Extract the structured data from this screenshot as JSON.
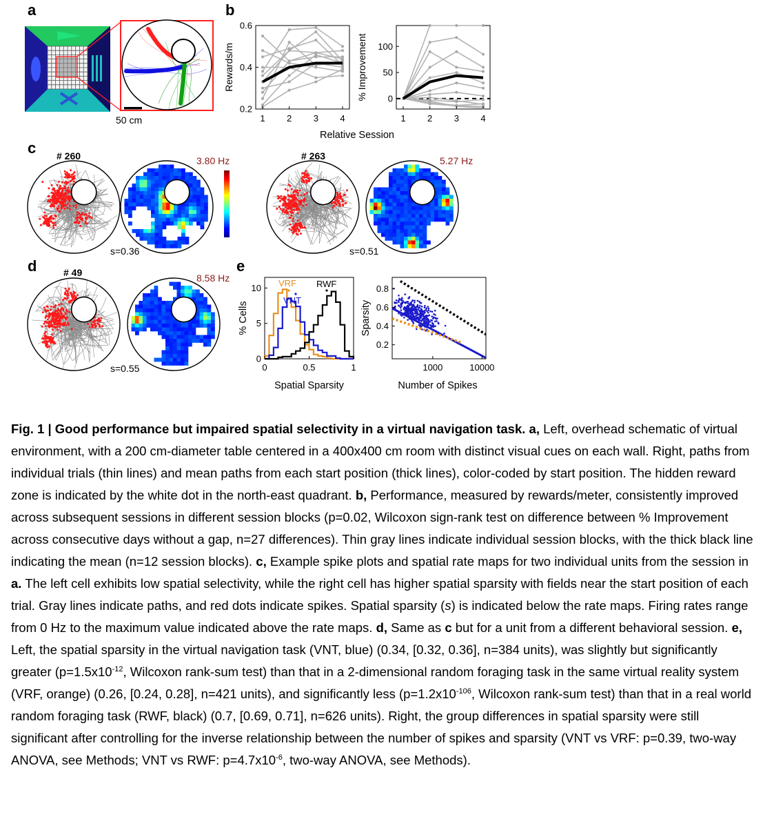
{
  "panels": {
    "a": {
      "label": "a",
      "scale_bar": "50 cm",
      "colors": {
        "path_red": "#ff2020",
        "path_blue": "#1010e0",
        "path_green": "#10a010"
      }
    },
    "b": {
      "label": "b",
      "xlabel": "Relative Session",
      "left": {
        "ylabel": "Rewards/m",
        "xticks": [
          "1",
          "2",
          "3",
          "4"
        ],
        "yticks": [
          "0.2",
          "0.4",
          "0.6"
        ]
      },
      "right": {
        "ylabel": "% Improvement",
        "xticks": [
          "1",
          "2",
          "3",
          "4"
        ],
        "yticks": [
          "0",
          "50",
          "100"
        ]
      }
    },
    "c": {
      "label": "c",
      "unit1": {
        "id": "# 260",
        "max_rate": "3.80 Hz",
        "sparsity": "s=0.36"
      },
      "unit2": {
        "id": "# 263",
        "max_rate": "5.27 Hz",
        "sparsity": "s=0.51"
      }
    },
    "d": {
      "label": "d",
      "unit": {
        "id": "# 49",
        "max_rate": "8.58 Hz",
        "sparsity": "s=0.55"
      }
    },
    "e": {
      "label": "e",
      "left": {
        "ylabel": "% Cells",
        "xlabel": "Spatial Sparsity",
        "xticks": [
          "0",
          "0.5",
          "1"
        ],
        "yticks": [
          "0",
          "5",
          "10"
        ],
        "legend": {
          "vrf": "VRF",
          "vnt": "VNT",
          "rwf": "RWF"
        }
      },
      "right": {
        "ylabel": "Sparsity",
        "xlabel": "Number of Spikes",
        "xticks": [
          "1000",
          "10000"
        ],
        "yticks": [
          "0.2",
          "0.4",
          "0.6",
          "0.8"
        ]
      },
      "colors": {
        "vrf": "#e8901c",
        "vnt": "#1a1acc",
        "rwf": "#000000"
      }
    }
  },
  "chart_data": [
    {
      "type": "line",
      "panel": "b-left",
      "x": [
        1,
        2,
        3,
        4
      ],
      "ylabel": "Rewards/m",
      "xlabel": "Relative Session",
      "ylim": [
        0.2,
        0.6
      ],
      "series": [
        {
          "name": "",
          "role": "mean",
          "values": [
            0.33,
            0.4,
            0.42,
            0.42
          ]
        },
        {
          "name": "",
          "role": "individual",
          "values": [
            0.21,
            0.29,
            0.33,
            0.39
          ]
        },
        {
          "name": "",
          "role": "individual",
          "values": [
            0.22,
            0.36,
            0.46,
            0.42
          ]
        },
        {
          "name": "",
          "role": "individual",
          "values": [
            0.25,
            0.52,
            0.41,
            0.43
          ]
        },
        {
          "name": "",
          "role": "individual",
          "values": [
            0.28,
            0.43,
            0.47,
            0.44
          ]
        },
        {
          "name": "",
          "role": "individual",
          "values": [
            0.3,
            0.33,
            0.42,
            0.4
          ]
        },
        {
          "name": "",
          "role": "individual",
          "values": [
            0.33,
            0.48,
            0.47,
            0.48
          ]
        },
        {
          "name": "",
          "role": "individual",
          "values": [
            0.36,
            0.48,
            0.57,
            0.43
          ]
        },
        {
          "name": "",
          "role": "individual",
          "values": [
            0.38,
            0.58,
            0.59,
            0.5
          ]
        },
        {
          "name": "",
          "role": "individual",
          "values": [
            0.4,
            0.4,
            0.35,
            0.36
          ]
        },
        {
          "name": "",
          "role": "individual",
          "values": [
            0.45,
            0.49,
            0.53,
            0.41
          ]
        },
        {
          "name": "",
          "role": "individual",
          "values": [
            0.48,
            0.42,
            0.4,
            0.38
          ]
        },
        {
          "name": "",
          "role": "individual",
          "values": [
            0.55,
            0.43,
            0.45,
            0.45
          ]
        }
      ]
    },
    {
      "type": "line",
      "panel": "b-right",
      "x": [
        1,
        2,
        3,
        4
      ],
      "ylabel": "% Improvement",
      "xlabel": "Relative Session",
      "ylim": [
        -20,
        140
      ],
      "reference_line": 0,
      "series": [
        {
          "name": "",
          "role": "mean",
          "values": [
            0,
            32,
            44,
            40
          ]
        },
        {
          "name": "",
          "role": "individual",
          "values": [
            0,
            140,
            140,
            140
          ]
        },
        {
          "name": "",
          "role": "individual",
          "values": [
            0,
            108,
            117,
            85
          ]
        },
        {
          "name": "",
          "role": "individual",
          "values": [
            0,
            90,
            60,
            52
          ]
        },
        {
          "name": "",
          "role": "individual",
          "values": [
            0,
            60,
            90,
            60
          ]
        },
        {
          "name": "",
          "role": "individual",
          "values": [
            0,
            40,
            50,
            30
          ]
        },
        {
          "name": "",
          "role": "individual",
          "values": [
            0,
            15,
            30,
            20
          ]
        },
        {
          "name": "",
          "role": "individual",
          "values": [
            0,
            8,
            12,
            5
          ]
        },
        {
          "name": "",
          "role": "individual",
          "values": [
            0,
            -3,
            -6,
            -2
          ]
        },
        {
          "name": "",
          "role": "individual",
          "values": [
            0,
            -8,
            -13,
            -10
          ]
        },
        {
          "name": "",
          "role": "individual",
          "values": [
            0,
            -10,
            -14,
            -15
          ]
        },
        {
          "name": "",
          "role": "individual",
          "values": [
            0,
            -5,
            -15,
            -18
          ]
        },
        {
          "name": "",
          "role": "individual",
          "values": [
            0,
            2,
            -4,
            -11
          ]
        }
      ]
    },
    {
      "type": "line",
      "panel": "e-left",
      "step": true,
      "xlabel": "Spatial Sparsity",
      "ylabel": "% Cells",
      "xlim": [
        0,
        1
      ],
      "ylim": [
        0,
        11.5
      ],
      "bin_width": 0.05,
      "series": [
        {
          "name": "VRF",
          "x": [
            0,
            0.05,
            0.1,
            0.15,
            0.2,
            0.25,
            0.3,
            0.35,
            0.4,
            0.45,
            0.5,
            0.55,
            0.6,
            0.65,
            0.7,
            0.75,
            0.8,
            0.85,
            0.9,
            0.95
          ],
          "values": [
            0.4,
            3.3,
            6.4,
            9.3,
            9.8,
            8.6,
            7.3,
            5.4,
            3.5,
            2.0,
            1.3,
            0.6,
            0.4,
            0.3,
            0.1,
            0,
            0,
            0,
            0,
            0
          ]
        },
        {
          "name": "VNT",
          "x": [
            0,
            0.05,
            0.1,
            0.15,
            0.2,
            0.25,
            0.3,
            0.35,
            0.4,
            0.45,
            0.5,
            0.55,
            0.6,
            0.65,
            0.7,
            0.75,
            0.8,
            0.85,
            0.9,
            0.95
          ],
          "values": [
            0,
            0.5,
            1.6,
            4.3,
            7.3,
            8.5,
            8.1,
            7.4,
            5.2,
            3.4,
            2.7,
            1.9,
            1.2,
            0.9,
            0.4,
            0.4,
            0.1,
            0,
            0,
            0
          ]
        },
        {
          "name": "RWF",
          "x": [
            0,
            0.05,
            0.1,
            0.15,
            0.2,
            0.25,
            0.3,
            0.35,
            0.4,
            0.45,
            0.5,
            0.55,
            0.6,
            0.65,
            0.7,
            0.75,
            0.8,
            0.85,
            0.9,
            0.95
          ],
          "values": [
            0,
            0,
            0,
            0.2,
            0.3,
            0.3,
            0.7,
            1.1,
            1.5,
            2.3,
            3.8,
            4.8,
            6.1,
            7.6,
            8.9,
            9.5,
            8.0,
            4.8,
            1.1,
            0.3
          ]
        }
      ]
    },
    {
      "type": "scatter",
      "panel": "e-right",
      "xlabel": "Number of Spikes",
      "ylabel": "Sparsity",
      "xscale": "log",
      "xlim": [
        150,
        12000
      ],
      "ylim": [
        0.05,
        0.92
      ],
      "point_count": 384,
      "fit_lines": [
        {
          "name": "VNT",
          "x": [
            150,
            12000
          ],
          "y": [
            0.59,
            0.06
          ]
        },
        {
          "name": "VRF",
          "x": [
            150,
            4000
          ],
          "y": [
            0.48,
            0.22
          ]
        },
        {
          "name": "RWF",
          "x": [
            220,
            12000
          ],
          "y": [
            0.88,
            0.31
          ]
        }
      ]
    }
  ]
}
